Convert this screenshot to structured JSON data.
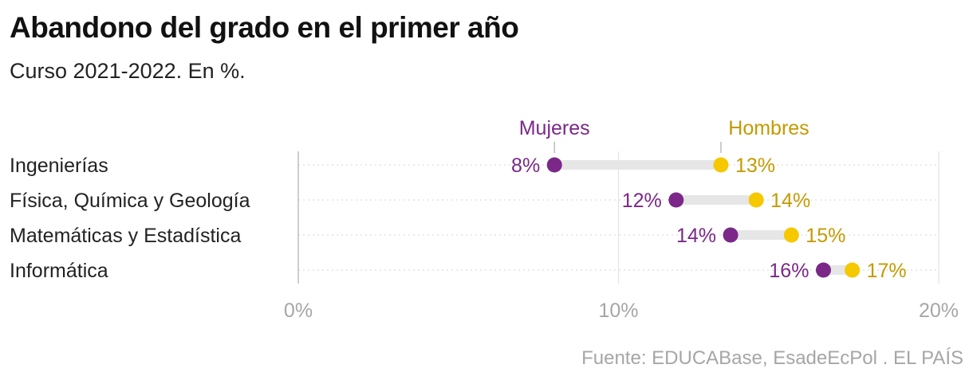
{
  "title": "Abandono del grado en el primer año",
  "subtitle": "Curso 2021-2022. En %.",
  "source": "Fuente: EDUCABase, EsadeEcPol . EL PAÍS",
  "colors": {
    "mujeres": "#7b2889",
    "hombres": "#f5c800",
    "hombres_text": "#c49a00",
    "grid": "#dddddd",
    "connector": "#e6e6e6"
  },
  "chart_data": {
    "type": "dumbbell",
    "categories": [
      "Ingenierías",
      "Física, Química y Geología",
      "Matemáticas y Estadística",
      "Informática"
    ],
    "series": [
      {
        "name": "Mujeres",
        "values": [
          8.0,
          11.8,
          13.5,
          16.4
        ],
        "labels": [
          "8%",
          "12%",
          "14%",
          "16%"
        ]
      },
      {
        "name": "Hombres",
        "values": [
          13.2,
          14.3,
          15.4,
          17.3
        ],
        "labels": [
          "13%",
          "14%",
          "15%",
          "17%"
        ]
      }
    ],
    "xlim": [
      0,
      20
    ],
    "xticks": [
      0,
      10,
      20
    ],
    "xtick_labels": [
      "0%",
      "10%",
      "20%"
    ],
    "grid": true
  }
}
